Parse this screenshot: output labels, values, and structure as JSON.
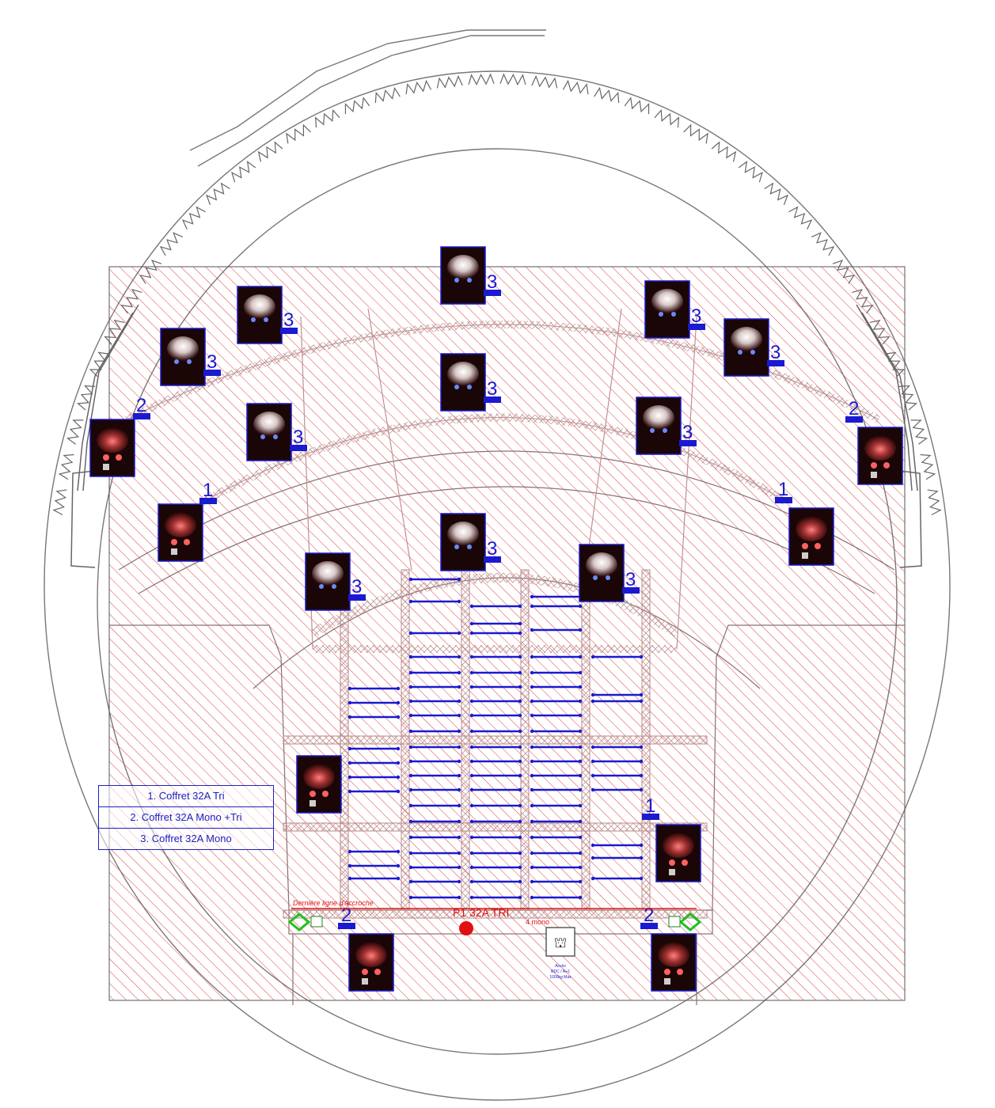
{
  "legend": {
    "item1": "1. Coffret 32A Tri",
    "item2": "2. Coffret 32A Mono +Tri",
    "item3": "3. Coffret 32A Mono"
  },
  "labels": {
    "rigging_line": "Dernière ligne d'accroche",
    "power_main": "P1 32A TRI",
    "power_sub": "4 mono",
    "lift_caption_1": "Accès",
    "lift_caption_2": "RDC / R+1",
    "lift_caption_3": "1000kg Max"
  },
  "box_labels": [
    "1",
    "2",
    "3"
  ],
  "colors": {
    "hatch": "#e04040",
    "truss": "#b88888",
    "outline": "#707070",
    "marker_blue": "#1a1ad0",
    "main_power": "#e01010",
    "exit_green": "#20c020"
  },
  "icons": {
    "fixture": "stage-light-icon",
    "lift": "lift-icon",
    "exit": "emergency-exit-icon",
    "power_point": "power-point-icon"
  }
}
